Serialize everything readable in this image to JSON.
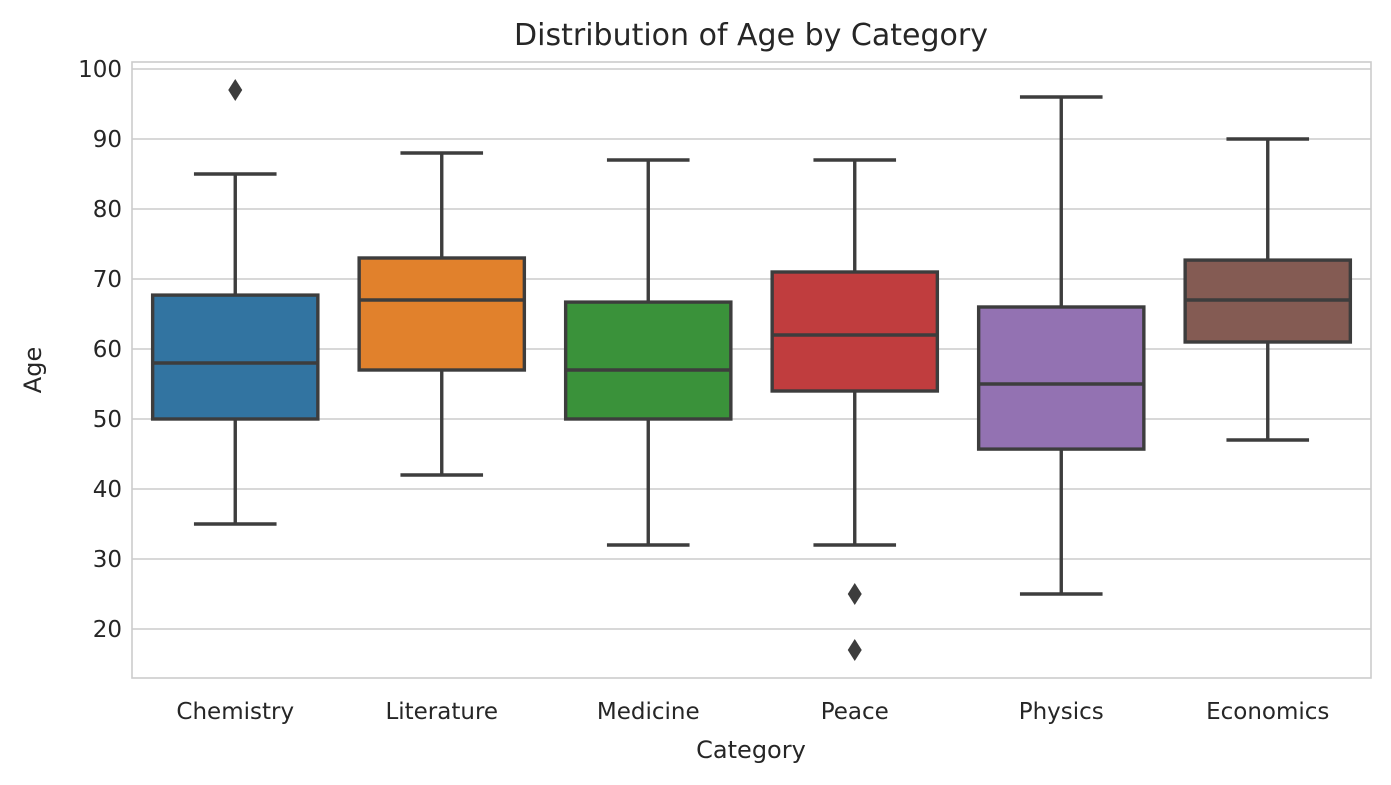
{
  "chart_data": {
    "type": "box",
    "title": "Distribution of Age by Category",
    "xlabel": "Category",
    "ylabel": "Age",
    "ylim": [
      13,
      101
    ],
    "yticks": [
      20,
      30,
      40,
      50,
      60,
      70,
      80,
      90,
      100
    ],
    "grid": true,
    "categories": [
      "Chemistry",
      "Literature",
      "Medicine",
      "Peace",
      "Physics",
      "Economics"
    ],
    "boxes": [
      {
        "category": "Chemistry",
        "whisker_low": 35,
        "q1": 50,
        "median": 58,
        "q3": 67.7,
        "whisker_high": 85,
        "outliers": [
          97
        ],
        "color": "#3274a1"
      },
      {
        "category": "Literature",
        "whisker_low": 42,
        "q1": 57,
        "median": 67,
        "q3": 73,
        "whisker_high": 88,
        "outliers": [],
        "color": "#e1812c"
      },
      {
        "category": "Medicine",
        "whisker_low": 32,
        "q1": 50,
        "median": 57,
        "q3": 66.7,
        "whisker_high": 87,
        "outliers": [],
        "color": "#3a923a"
      },
      {
        "category": "Peace",
        "whisker_low": 32,
        "q1": 54,
        "median": 62,
        "q3": 71,
        "whisker_high": 87,
        "outliers": [
          25,
          17
        ],
        "color": "#c03d3e"
      },
      {
        "category": "Physics",
        "whisker_low": 25,
        "q1": 45.7,
        "median": 55,
        "q3": 66,
        "whisker_high": 96,
        "outliers": [],
        "color": "#9372b2"
      },
      {
        "category": "Economics",
        "whisker_low": 47,
        "q1": 61,
        "median": 67,
        "q3": 72.7,
        "whisker_high": 90,
        "outliers": [],
        "color": "#845b53"
      }
    ]
  }
}
